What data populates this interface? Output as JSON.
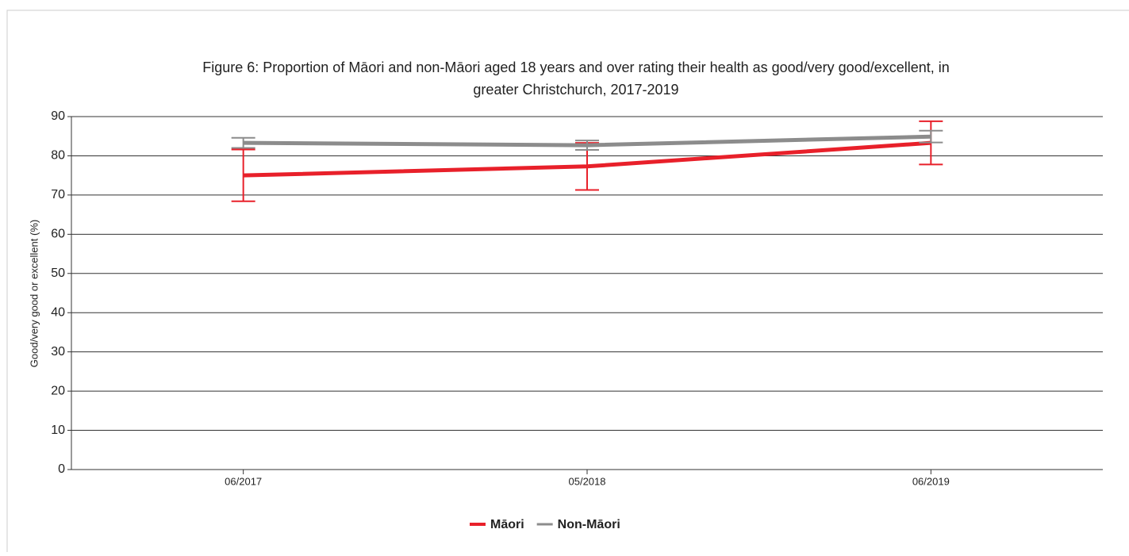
{
  "chart_data": {
    "type": "line",
    "title": "Figure 6: Proportion of Māori and non-Māori aged 18 years and over rating their health as good/very good/excellent, in",
    "subtitle": "greater Christchurch, 2017-2019",
    "y_label": "Good/very good or excellent (%)",
    "categories": [
      "06/2017",
      "05/2018",
      "06/2019"
    ],
    "series": [
      {
        "name": "Māori",
        "color": "#e8202a",
        "values": [
          75.0,
          77.3,
          83.3
        ],
        "errors": [
          6.6,
          6.0,
          5.5
        ]
      },
      {
        "name": "Non-Māori",
        "color": "#8c8c8c",
        "values": [
          83.3,
          82.7,
          84.9
        ],
        "errors": [
          1.3,
          1.2,
          1.5
        ]
      }
    ],
    "ylim": [
      0,
      90
    ],
    "yticks": [
      0,
      10,
      20,
      30,
      40,
      50,
      60,
      70,
      80,
      90
    ],
    "grid": true,
    "legend": "bottom"
  }
}
